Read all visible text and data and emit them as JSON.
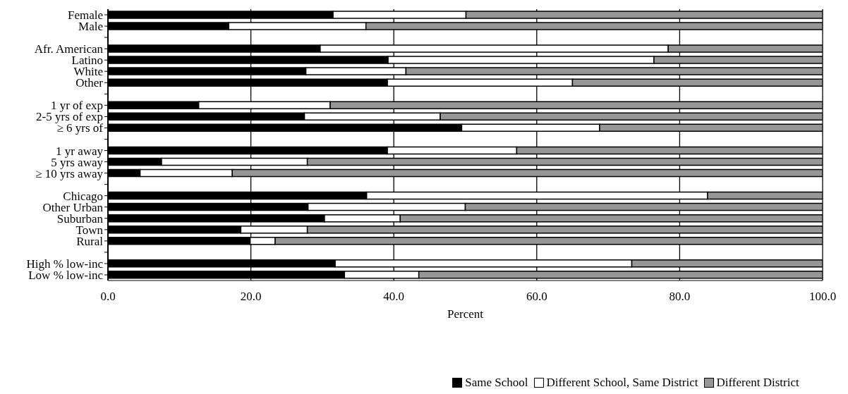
{
  "chart_data": {
    "type": "bar",
    "orientation": "horizontal",
    "stacked": true,
    "xlabel": "Percent",
    "categories": [
      "Female",
      "Male",
      null,
      "Afr. American",
      "Latino",
      "White",
      "Other",
      null,
      "1 yr of exp",
      "2-5 yrs of exp",
      "≥ 6 yrs of",
      null,
      "1 yr away",
      "5 yrs away",
      "≥ 10 yrs away",
      null,
      "Chicago",
      "Other Urban",
      "Suburban",
      "Town",
      "Rural",
      null,
      "High % low-inc",
      "Low % low-inc"
    ],
    "series": [
      {
        "name": "Same School",
        "color": "#000000",
        "values": [
          31.5,
          16.9,
          null,
          29.7,
          39.2,
          27.7,
          39.1,
          null,
          12.7,
          27.5,
          49.5,
          null,
          39.1,
          7.5,
          4.5,
          null,
          36.2,
          28.0,
          30.3,
          18.6,
          19.9,
          null,
          31.8,
          33.1
        ]
      },
      {
        "name": "Different School, Same District",
        "color": "#ffffff",
        "values": [
          18.6,
          19.2,
          null,
          48.7,
          37.2,
          14.0,
          25.9,
          null,
          18.4,
          19.0,
          19.3,
          null,
          18.1,
          20.4,
          12.9,
          null,
          47.7,
          22.0,
          10.6,
          9.3,
          3.5,
          null,
          41.5,
          10.4
        ]
      },
      {
        "name": "Different District",
        "color": "#969696",
        "values": [
          49.9,
          63.9,
          null,
          21.6,
          23.6,
          58.3,
          35.0,
          null,
          68.9,
          53.5,
          31.2,
          null,
          42.8,
          72.1,
          82.6,
          null,
          16.1,
          50.0,
          59.1,
          72.1,
          76.6,
          null,
          26.7,
          56.5
        ]
      }
    ],
    "xlim": [
      0,
      100
    ],
    "xticks": [
      {
        "value": 0,
        "label": "0.0"
      },
      {
        "value": 20,
        "label": "20.0"
      },
      {
        "value": 40,
        "label": "40.0"
      },
      {
        "value": 60,
        "label": "60.0"
      },
      {
        "value": 80,
        "label": "80.0"
      },
      {
        "value": 100,
        "label": "100.0"
      }
    ],
    "grid": "x",
    "legend": "bottom"
  }
}
